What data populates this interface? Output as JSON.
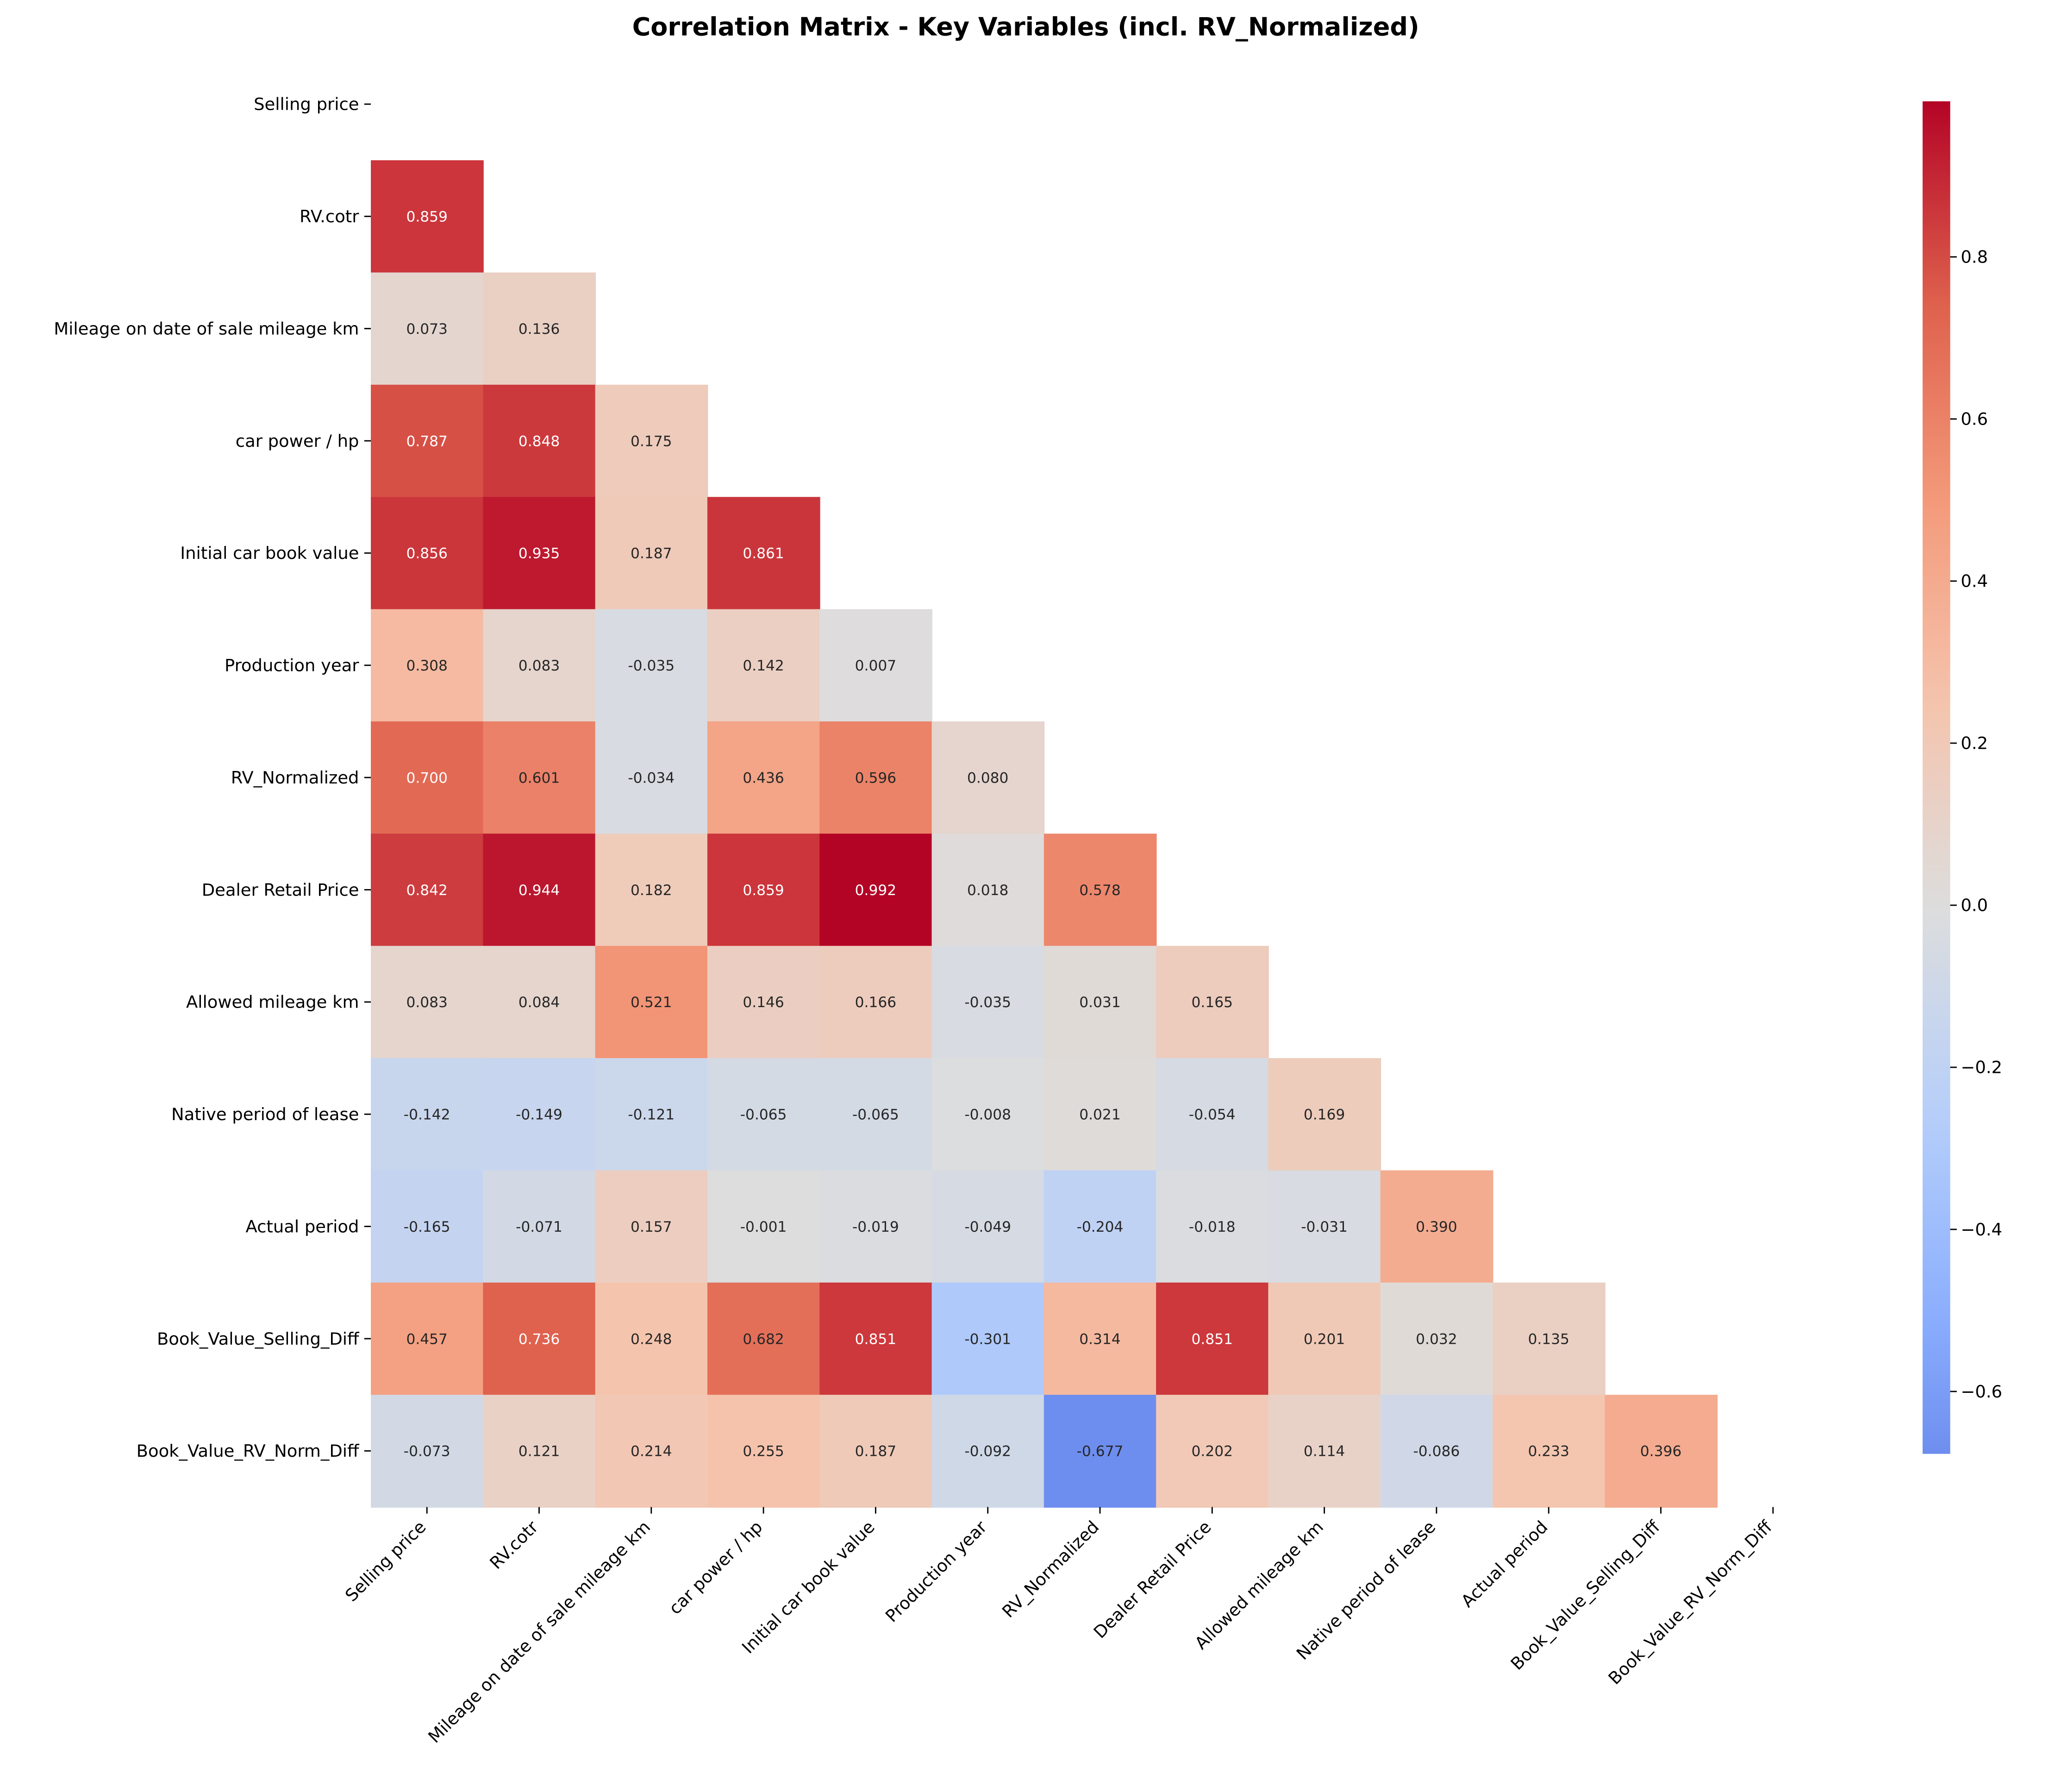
{
  "chart_data": {
    "type": "heatmap",
    "title": "Correlation Matrix - Key Variables (incl. RV_Normalized)",
    "variables": [
      "Selling price",
      "RV.cotr",
      "Mileage on date of sale mileage km",
      "car power / hp",
      "Initial car book value",
      "Production year",
      "RV_Normalized",
      "Dealer Retail Price",
      "Allowed mileage km",
      "Native period of lease",
      "Actual period",
      "Book_Value_Selling_Diff",
      "Book_Value_RV_Norm_Diff"
    ],
    "mask": "upper-triangle-including-diagonal",
    "lower_triangle": [
      [],
      [
        0.859
      ],
      [
        0.073,
        0.136
      ],
      [
        0.787,
        0.848,
        0.175
      ],
      [
        0.856,
        0.935,
        0.187,
        0.861
      ],
      [
        0.308,
        0.083,
        -0.035,
        0.142,
        0.007
      ],
      [
        0.7,
        0.601,
        -0.034,
        0.436,
        0.596,
        0.08
      ],
      [
        0.842,
        0.944,
        0.182,
        0.859,
        0.992,
        0.018,
        0.578
      ],
      [
        0.083,
        0.084,
        0.521,
        0.146,
        0.166,
        -0.035,
        0.031,
        0.165
      ],
      [
        -0.142,
        -0.149,
        -0.121,
        -0.065,
        -0.065,
        -0.008,
        0.021,
        -0.054,
        0.169
      ],
      [
        -0.165,
        -0.071,
        0.157,
        -0.001,
        -0.019,
        -0.049,
        -0.204,
        -0.018,
        -0.031,
        0.39
      ],
      [
        0.457,
        0.736,
        0.248,
        0.682,
        0.851,
        -0.301,
        0.314,
        0.851,
        0.201,
        0.032,
        0.135
      ],
      [
        -0.073,
        0.121,
        0.214,
        0.255,
        0.187,
        -0.092,
        -0.677,
        0.202,
        0.114,
        -0.086,
        0.233,
        0.396
      ]
    ],
    "colormap": "coolwarm",
    "center": 0,
    "vmin": -0.677,
    "vmax": 0.992,
    "colorbar": {
      "ticks": [
        -0.6,
        -0.4,
        -0.2,
        0.0,
        0.2,
        0.4,
        0.6,
        0.8
      ],
      "tick_labels": [
        "−0.6",
        "−0.4",
        "−0.2",
        "0.0",
        "0.2",
        "0.4",
        "0.6",
        "0.8"
      ]
    }
  }
}
